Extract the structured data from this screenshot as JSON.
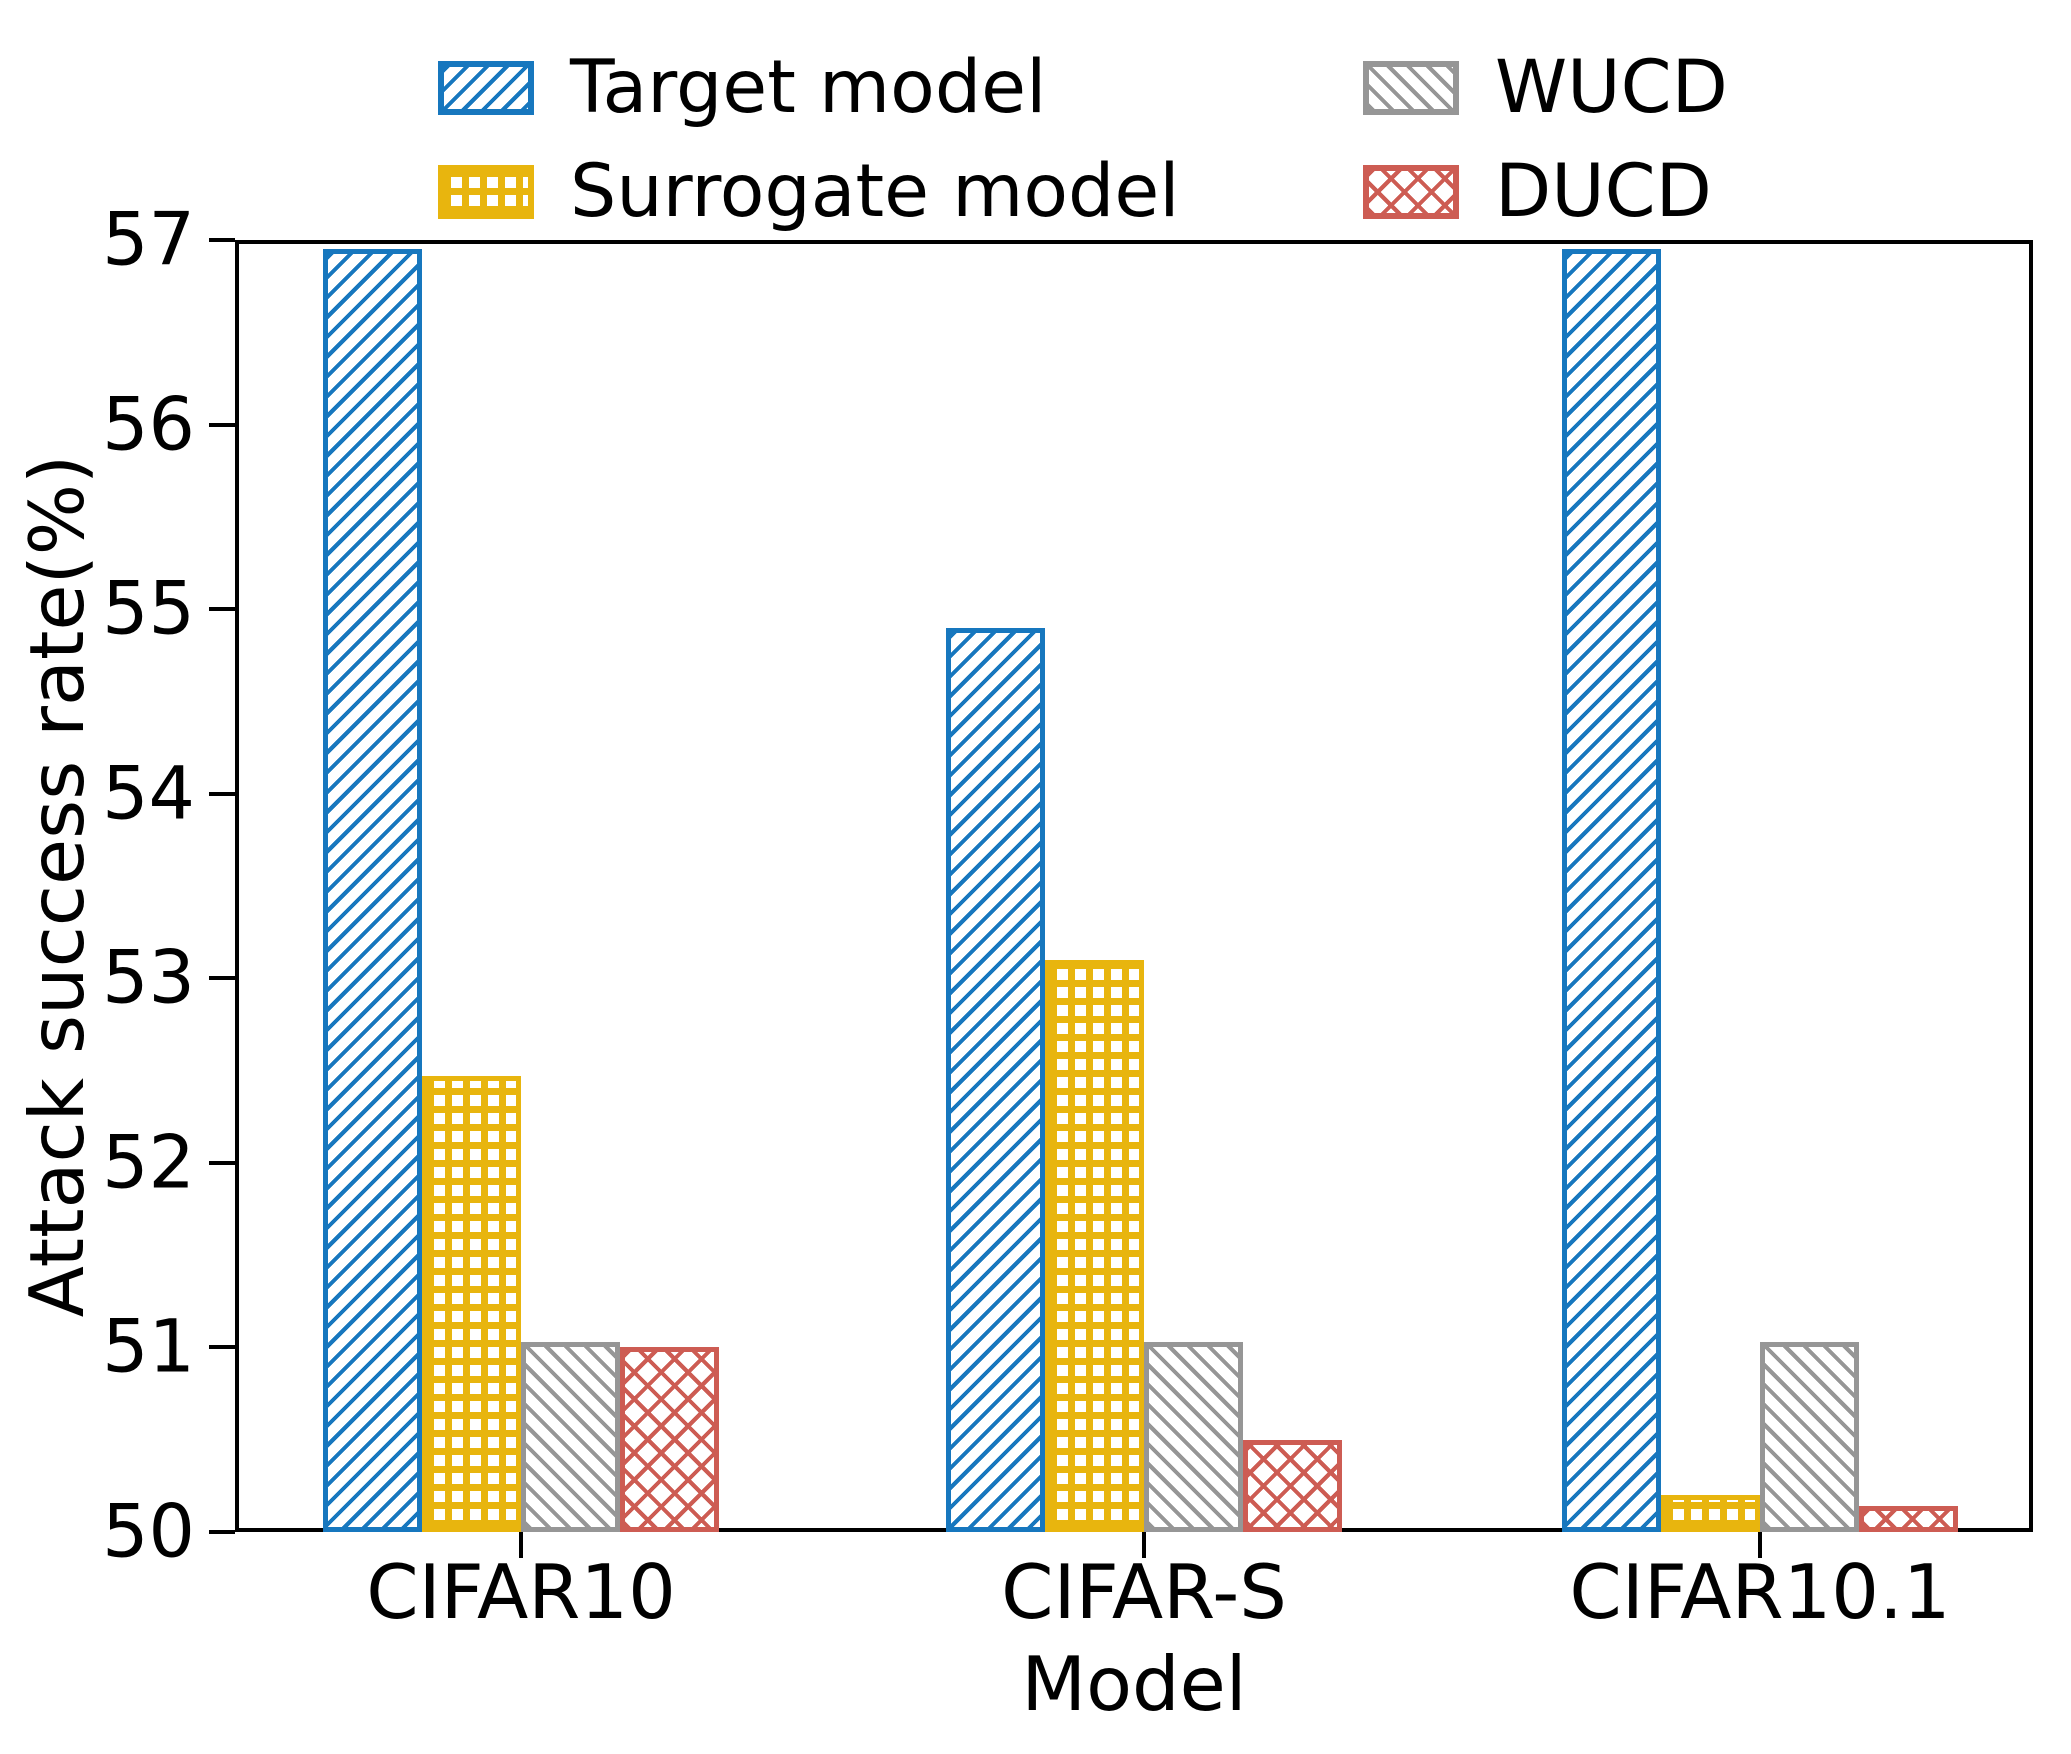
{
  "chart_data": {
    "type": "bar",
    "title": "",
    "xlabel": "Model",
    "ylabel": "Attack success rate(%)",
    "ylim": [
      50,
      57
    ],
    "yticks": [
      50,
      51,
      52,
      53,
      54,
      55,
      56,
      57
    ],
    "categories": [
      "CIFAR10",
      "CIFAR-S",
      "CIFAR10.1"
    ],
    "series": [
      {
        "name": "Target model",
        "color": "#1777be",
        "hatch": "/",
        "values": [
          56.95,
          54.9,
          56.95
        ]
      },
      {
        "name": "Surrogate model",
        "color": "#e8b50e",
        "hatch": "+",
        "values": [
          52.47,
          53.1,
          50.2
        ]
      },
      {
        "name": "WUCD",
        "color": "#969696",
        "hatch": "\\",
        "values": [
          51.03,
          51.03,
          51.03
        ]
      },
      {
        "name": "DUCD",
        "color": "#cd5c53",
        "hatch": "x",
        "values": [
          51.0,
          50.5,
          50.14
        ]
      }
    ],
    "legend_position": "above-plot, 2 columns",
    "grid": false,
    "axis_color": "#000000",
    "background_color": "#ffffff"
  }
}
